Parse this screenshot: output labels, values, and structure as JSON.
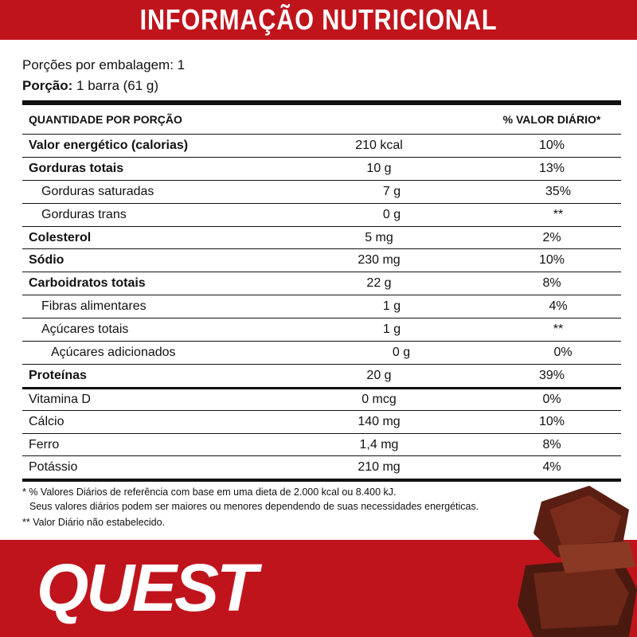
{
  "header": {
    "title": "INFORMAÇÃO NUTRICIONAL"
  },
  "servings": {
    "per_package": "Porções por embalagem: 1",
    "portion_label": "Porção:",
    "portion_value": "1 barra (61 g)"
  },
  "table": {
    "columns": [
      "QUANTIDADE POR PORÇÃO",
      "% VALOR DIÁRIO*"
    ],
    "rows": [
      [
        "Valor energético (calorias)",
        "210 kcal",
        "10%"
      ],
      [
        "Gorduras totais",
        "10 g",
        "13%"
      ],
      [
        "Gorduras saturadas",
        "7 g",
        "35%"
      ],
      [
        "Gorduras trans",
        "0 g",
        "**"
      ],
      [
        "Colesterol",
        "5 mg",
        "2%"
      ],
      [
        "Sódio",
        "230 mg",
        "10%"
      ],
      [
        "Carboidratos totais",
        "22 g",
        "8%"
      ],
      [
        "Fibras alimentares",
        "1 g",
        "4%"
      ],
      [
        "Açúcares totais",
        "1 g",
        "**"
      ],
      [
        "Açúcares adicionados",
        "0 g",
        "0%"
      ],
      [
        "Proteínas",
        "20 g",
        "39%"
      ],
      [
        "Vitamina D",
        "0 mcg",
        "0%"
      ],
      [
        "Cálcio",
        "140 mg",
        "10%"
      ],
      [
        "Ferro",
        "1,4 mg",
        "8%"
      ],
      [
        "Potássio",
        "210 mg",
        "4%"
      ]
    ]
  },
  "footnotes": [
    "* % Valores Diários de referência com base em uma dieta de 2.000 kcal ou 8.400 kJ.",
    "Seus valores diários podem ser maiores ou menores dependendo de suas necessidades energéticas.",
    "** Valor Diário não estabelecido."
  ],
  "brand": "QUEST"
}
